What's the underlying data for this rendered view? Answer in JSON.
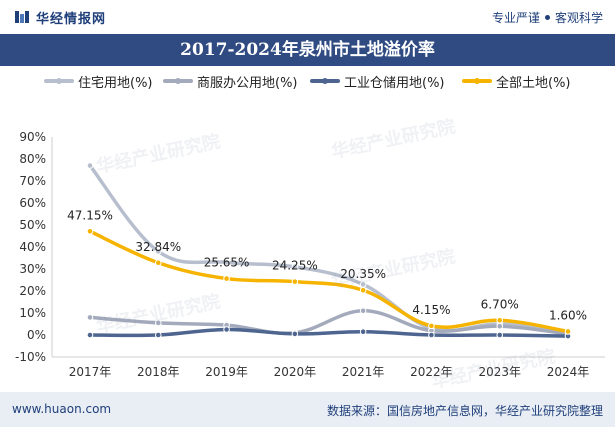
{
  "header": {
    "brand": "华经情报网",
    "slogan_left": "专业严谨",
    "slogan_right": "客观科学"
  },
  "footer": {
    "website": "www.huaon.com",
    "source": "数据来源：国信房地产信息网，华经产业研究院整理"
  },
  "watermark": "华经产业研究院",
  "colors": {
    "header_bg": "#2f4b82",
    "residential": "#b7bfce",
    "commercial": "#a3aabb",
    "industrial": "#4e6590",
    "all_land": "#f6b400"
  },
  "chart_data": {
    "type": "line",
    "title": "2017-2024年泉州市土地溢价率",
    "categories": [
      "2017年",
      "2018年",
      "2019年",
      "2020年",
      "2021年",
      "2022年",
      "2023年",
      "2024年"
    ],
    "ylim": [
      -10,
      90
    ],
    "yticks": [
      "90%",
      "80%",
      "70%",
      "60%",
      "50%",
      "40%",
      "30%",
      "20%",
      "10%",
      "0%",
      "-10%"
    ],
    "series": [
      {
        "name": "住宅用地(%)",
        "values": [
          77,
          38,
          33,
          31,
          23,
          3,
          5,
          1.5
        ]
      },
      {
        "name": "商服办公用地(%)",
        "values": [
          8,
          5.5,
          4.5,
          1,
          11,
          2,
          4,
          0.5
        ]
      },
      {
        "name": "工业仓储用地(%)",
        "values": [
          0,
          0,
          2.5,
          0.5,
          1.5,
          0,
          0,
          -0.5
        ]
      },
      {
        "name": "全部土地(%)",
        "values": [
          47.15,
          32.84,
          25.65,
          24.25,
          20.35,
          4.15,
          6.7,
          1.6
        ]
      }
    ],
    "data_labels": [
      "47.15%",
      "32.84%",
      "25.65%",
      "24.25%",
      "20.35%",
      "4.15%",
      "6.70%",
      "1.60%"
    ],
    "legend_position": "top",
    "grid": false
  }
}
